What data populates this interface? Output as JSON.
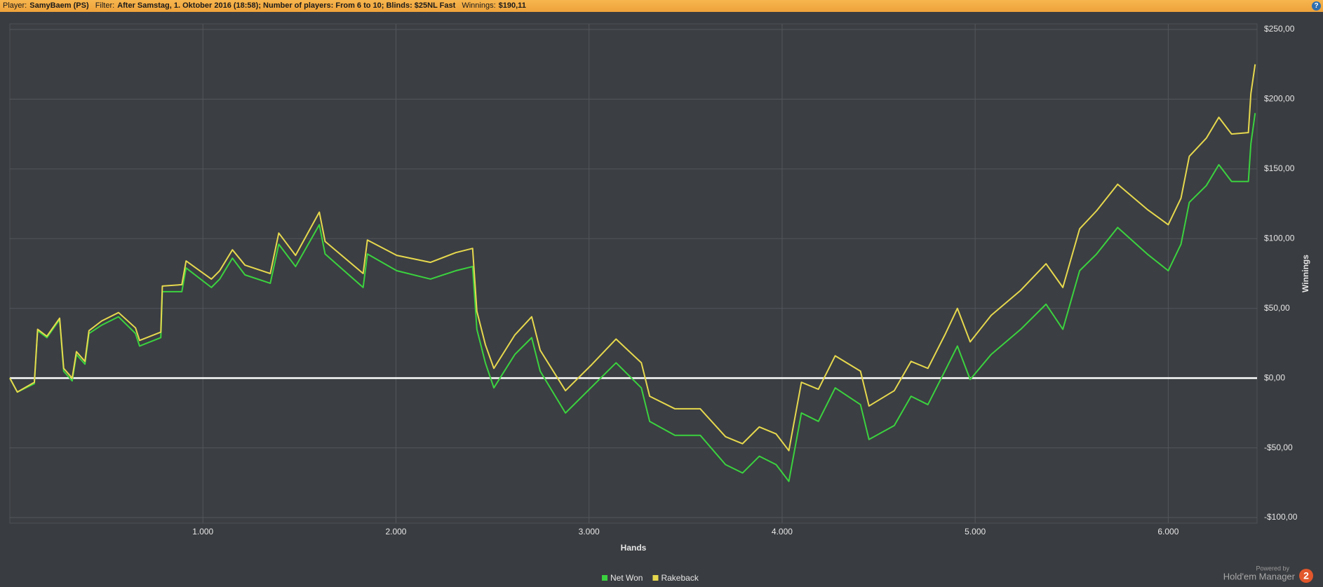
{
  "header": {
    "fields": [
      {
        "label": "Player:",
        "value": "SamyBaem (PS)"
      },
      {
        "label": "Filter:",
        "value": "After Samstag, 1. Oktober 2016 (18:58); Number of players: From 6 to 10; Blinds: $25NL Fast"
      },
      {
        "label": "Winnings:",
        "value": "$190,11"
      }
    ],
    "help": "?"
  },
  "chart_data": {
    "type": "line",
    "xlabel": "Hands",
    "ylabel": "Winnings",
    "x": [
      0,
      39,
      127,
      144,
      192,
      258,
      279,
      323,
      345,
      389,
      410,
      476,
      563,
      651,
      672,
      782,
      790,
      891,
      913,
      1044,
      1087,
      1153,
      1218,
      1349,
      1393,
      1480,
      1603,
      1633,
      1830,
      1852,
      2004,
      2179,
      2310,
      2397,
      2419,
      2463,
      2507,
      2616,
      2703,
      2747,
      2878,
      3009,
      3140,
      3271,
      3314,
      3445,
      3576,
      3707,
      3795,
      3882,
      3969,
      4035,
      4100,
      4188,
      4275,
      4406,
      4450,
      4581,
      4668,
      4755,
      4843,
      4908,
      4974,
      5083,
      5236,
      5367,
      5454,
      5541,
      5629,
      5738,
      5891,
      6000,
      6066,
      6109,
      6197,
      6262,
      6328,
      6415,
      6428,
      6450
    ],
    "series": [
      {
        "name": "Net Won",
        "color": "#3bd23f",
        "values": [
          0,
          -10,
          -4,
          34,
          29,
          42,
          5,
          -2,
          17,
          10,
          32,
          38,
          44,
          32,
          23,
          29,
          62,
          62,
          79,
          65,
          71,
          86,
          74,
          68,
          96,
          80,
          110,
          89,
          65,
          89,
          77,
          71,
          77,
          80,
          35,
          11,
          -7,
          17,
          29,
          5,
          -25,
          -7,
          11,
          -7,
          -31,
          -41,
          -41,
          -62,
          -68,
          -56,
          -62,
          -74,
          -25,
          -31,
          -7,
          -19,
          -44,
          -34,
          -13,
          -19,
          5,
          23,
          -1,
          17,
          35,
          53,
          35,
          77,
          89,
          108,
          89,
          77,
          96,
          126,
          138,
          153,
          141,
          141,
          168,
          190
        ]
      },
      {
        "name": "Rakeback",
        "color": "#e6d84e",
        "values": [
          0,
          -10,
          -3,
          35,
          30,
          43,
          7,
          0,
          19,
          12,
          34,
          41,
          47,
          36,
          27,
          33,
          66,
          67,
          84,
          71,
          77,
          92,
          81,
          75,
          104,
          88,
          119,
          98,
          75,
          99,
          88,
          83,
          90,
          93,
          48,
          24,
          7,
          31,
          44,
          20,
          -9,
          9,
          28,
          11,
          -13,
          -22,
          -22,
          -42,
          -47,
          -35,
          -40,
          -52,
          -3,
          -8,
          16,
          5,
          -20,
          -9,
          12,
          7,
          31,
          50,
          26,
          45,
          63,
          82,
          65,
          107,
          120,
          139,
          121,
          110,
          129,
          159,
          172,
          187,
          175,
          176,
          204,
          225
        ]
      }
    ],
    "xlim": [
      0,
      6460
    ],
    "ylim": [
      -104,
      254
    ],
    "xticks": [
      {
        "value": 1000,
        "label": "1.000"
      },
      {
        "value": 2000,
        "label": "2.000"
      },
      {
        "value": 3000,
        "label": "3.000"
      },
      {
        "value": 4000,
        "label": "4.000"
      },
      {
        "value": 5000,
        "label": "5.000"
      },
      {
        "value": 6000,
        "label": "6.000"
      }
    ],
    "yticks": [
      {
        "value": -100,
        "label": "-$100,00"
      },
      {
        "value": -50,
        "label": "-$50,00"
      },
      {
        "value": 0,
        "label": "$0,00"
      },
      {
        "value": 50,
        "label": "$50,00"
      },
      {
        "value": 100,
        "label": "$100,00"
      },
      {
        "value": 150,
        "label": "$150,00"
      },
      {
        "value": 200,
        "label": "$200,00"
      },
      {
        "value": 250,
        "label": "$250,00"
      }
    ],
    "grid": true,
    "legend": "bottom"
  },
  "watermark": {
    "powered_by": "Powered by",
    "name": "Hold'em Manager",
    "badge": "2"
  }
}
